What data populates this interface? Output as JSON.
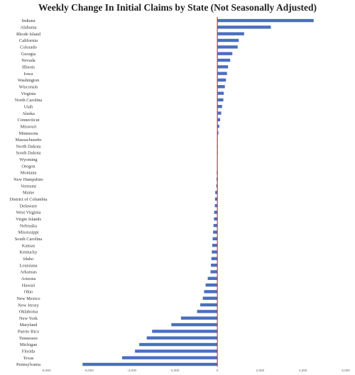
{
  "chart_data": {
    "type": "bar",
    "orientation": "horizontal",
    "title": "Weekly Change In Initial Claims by State (Not Seasonally Adjusted)",
    "xlabel": "",
    "ylabel": "",
    "xlim": [
      -8000,
      6000
    ],
    "xticks": [
      -8000,
      -6000,
      -4000,
      -2000,
      0,
      2000,
      4000,
      6000
    ],
    "xtick_labels": [
      "-8,000",
      "-6,000",
      "-4,000",
      "-2,000",
      "0",
      "2,000",
      "4,000",
      "6,000"
    ],
    "grid": false,
    "legend": "none",
    "colors": {
      "bar": "#4a6fbf",
      "zero_line": "#e0302a"
    },
    "categories": [
      "Indiana",
      "Alabama",
      "Rhode Island",
      "California",
      "Colorado",
      "Georgia",
      "Nevada",
      "Illinois",
      "Iowa",
      "Washington",
      "Wisconsin",
      "Virginia",
      "North Carolina",
      "Utah",
      "Alaska",
      "Connecticut",
      "Missouri",
      "Minnesota",
      "Massachusetts",
      "North Dakota",
      "South Dakota",
      "Wyoming",
      "Oregon",
      "Montana",
      "New Hampshire",
      "Vermont",
      "Maine",
      "District of Columbia",
      "Delaware",
      "West Virginia",
      "Virgin Islands",
      "Nebraska",
      "Mississippi",
      "South Carolina",
      "Kansas",
      "Kentucky",
      "Idaho",
      "Louisiana",
      "Arkansas",
      "Arizona",
      "Hawaii",
      "Ohio",
      "New Mexico",
      "New Jersey",
      "Oklahoma",
      "New York",
      "Maryland",
      "Puerto Rico",
      "Tennessee",
      "Michigan",
      "Florida",
      "Texas",
      "Pennsylvania"
    ],
    "values": [
      4500,
      2500,
      1250,
      1000,
      950,
      700,
      600,
      500,
      450,
      400,
      350,
      300,
      280,
      220,
      180,
      130,
      90,
      50,
      20,
      10,
      5,
      -10,
      -20,
      -30,
      -40,
      -50,
      -100,
      -110,
      -120,
      -150,
      -160,
      -180,
      -200,
      -220,
      -240,
      -260,
      -280,
      -300,
      -320,
      -450,
      -550,
      -620,
      -680,
      -800,
      -950,
      -1700,
      -2150,
      -3050,
      -3300,
      -3650,
      -3850,
      -4450,
      -6300
    ]
  }
}
